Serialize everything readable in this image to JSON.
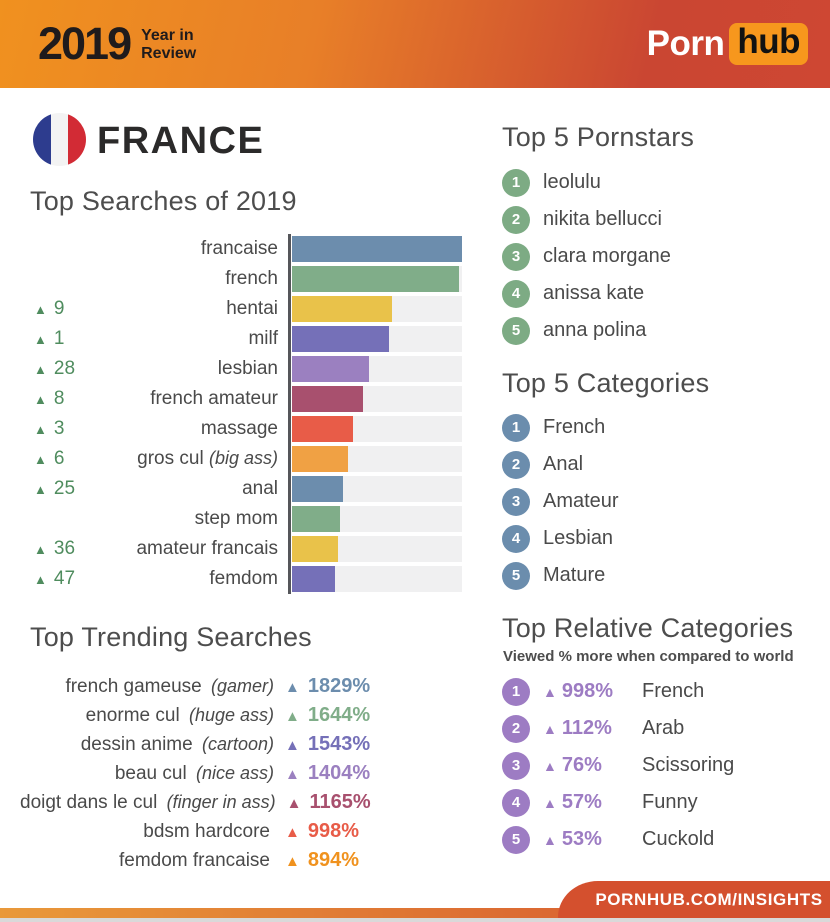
{
  "header": {
    "year": "2019",
    "tagline_line1": "Year in",
    "tagline_line2": "Review",
    "brand": {
      "porn": "Porn",
      "hub": "hub",
      "hub_badge_color": "#f7971d"
    }
  },
  "country": {
    "name": "FRANCE",
    "flag_colors": {
      "blue": "#2d3c8e",
      "white": "#f3f3f3",
      "red": "#d22b35"
    }
  },
  "colors": {
    "header_gradient_left": "#f0911f",
    "header_gradient_right": "#ce4733",
    "footer": "#d4502e",
    "rank_up_green": "#4f8c5e",
    "bar_track": "#f0f0f1",
    "pornstars_badge": "#7dab84",
    "categories_badge": "#6b8dad",
    "relative_badge": "#9d7cc3"
  },
  "chart_data": [
    {
      "id": "top_searches",
      "type": "bar",
      "orientation": "horizontal",
      "title": "Top Searches of 2019",
      "xlabel": "",
      "ylabel": "",
      "unit": "relative search volume, bar length as % of top search (no numeric axis shown)",
      "grid": false,
      "legend": false,
      "rows": [
        {
          "rank_change": "",
          "label": "francaise",
          "note": "",
          "value_pct": 100,
          "color": "#6c8dad"
        },
        {
          "rank_change": "",
          "label": "french",
          "note": "",
          "value_pct": 98,
          "color": "#80ad89"
        },
        {
          "rank_change": "9",
          "label": "hentai",
          "note": "",
          "value_pct": 59,
          "color": "#e9c24a"
        },
        {
          "rank_change": "1",
          "label": "milf",
          "note": "",
          "value_pct": 57,
          "color": "#7570b8"
        },
        {
          "rank_change": "28",
          "label": "lesbian",
          "note": "",
          "value_pct": 45,
          "color": "#9b80c0"
        },
        {
          "rank_change": "8",
          "label": "french amateur",
          "note": "",
          "value_pct": 42,
          "color": "#a8506e"
        },
        {
          "rank_change": "3",
          "label": "massage",
          "note": "",
          "value_pct": 36,
          "color": "#e85c48"
        },
        {
          "rank_change": "6",
          "label": "gros cul",
          "note": "(big ass)",
          "value_pct": 33,
          "color": "#f0a144"
        },
        {
          "rank_change": "25",
          "label": "anal",
          "note": "",
          "value_pct": 30,
          "color": "#6c8dad"
        },
        {
          "rank_change": "",
          "label": "step mom",
          "note": "",
          "value_pct": 28,
          "color": "#80ad89"
        },
        {
          "rank_change": "36",
          "label": "amateur francais",
          "note": "",
          "value_pct": 27,
          "color": "#e9c24a"
        },
        {
          "rank_change": "47",
          "label": "femdom",
          "note": "",
          "value_pct": 25,
          "color": "#7570b8"
        }
      ]
    },
    {
      "id": "top_trending_searches",
      "type": "table",
      "title": "Top Trending Searches",
      "unit": "year-over-year growth in searches, %",
      "rows": [
        {
          "label": "french gameuse",
          "note": "(gamer)",
          "value": "1829%",
          "color": "#6c8dad"
        },
        {
          "label": "enorme cul",
          "note": "(huge ass)",
          "value": "1644%",
          "color": "#80ad89"
        },
        {
          "label": "dessin anime",
          "note": "(cartoon)",
          "value": "1543%",
          "color": "#7570b8"
        },
        {
          "label": "beau cul",
          "note": "(nice ass)",
          "value": "1404%",
          "color": "#9b80c0"
        },
        {
          "label": "doigt dans le cul",
          "note": "(finger in ass)",
          "value": "1165%",
          "color": "#a8506e"
        },
        {
          "label": "bdsm hardcore",
          "note": "",
          "value": "998%",
          "color": "#e85c48"
        },
        {
          "label": "femdom francaise",
          "note": "",
          "value": "894%",
          "color": "#f0921e"
        }
      ]
    },
    {
      "id": "top_relative_categories",
      "type": "table",
      "title": "Top Relative Categories",
      "subtitle": "Viewed % more when compared to world",
      "rows": [
        {
          "rank": "1",
          "value": "998%",
          "name": "French",
          "color": "#9d7cc3"
        },
        {
          "rank": "2",
          "value": "112%",
          "name": "Arab",
          "color": "#9d7cc3"
        },
        {
          "rank": "3",
          "value": "76%",
          "name": "Scissoring",
          "color": "#9d7cc3"
        },
        {
          "rank": "4",
          "value": "57%",
          "name": "Funny",
          "color": "#9d7cc3"
        },
        {
          "rank": "5",
          "value": "53%",
          "name": "Cuckold",
          "color": "#9d7cc3"
        }
      ]
    }
  ],
  "top_pornstars": {
    "title": "Top 5 Pornstars",
    "badge_color": "#7dab84",
    "items": [
      {
        "rank": "1",
        "name": "leolulu"
      },
      {
        "rank": "2",
        "name": "nikita bellucci"
      },
      {
        "rank": "3",
        "name": "clara morgane"
      },
      {
        "rank": "4",
        "name": "anissa kate"
      },
      {
        "rank": "5",
        "name": "anna polina"
      }
    ]
  },
  "top_categories": {
    "title": "Top 5 Categories",
    "badge_color": "#6b8dad",
    "items": [
      {
        "rank": "1",
        "name": "French"
      },
      {
        "rank": "2",
        "name": "Anal"
      },
      {
        "rank": "3",
        "name": "Amateur"
      },
      {
        "rank": "4",
        "name": "Lesbian"
      },
      {
        "rank": "5",
        "name": "Mature"
      }
    ]
  },
  "footer": {
    "url": "PORNHUB.COM/INSIGHTS"
  }
}
